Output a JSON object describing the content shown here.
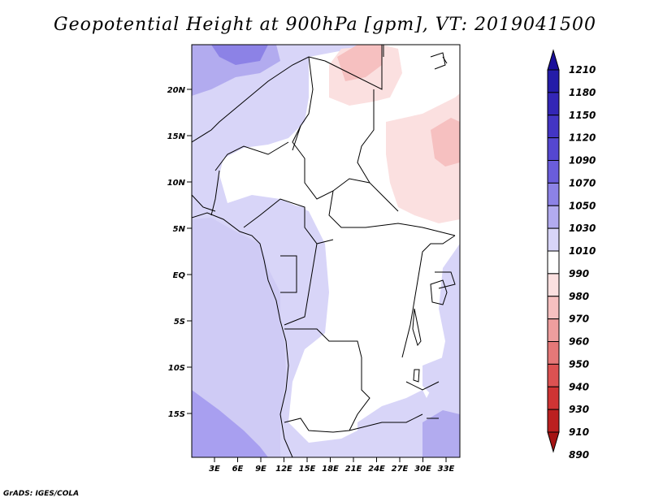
{
  "title": "Geopotential Height at 900hPa [gpm], VT: 2019041500",
  "credit": "GrADS: IGES/COLA",
  "lat_labels": [
    "20N",
    "15N",
    "10N",
    "5N",
    "EQ",
    "5S",
    "10S",
    "15S"
  ],
  "lon_labels": [
    "3E",
    "6E",
    "9E",
    "12E",
    "15E",
    "18E",
    "21E",
    "24E",
    "27E",
    "30E",
    "33E"
  ],
  "colorbar": {
    "levels": [
      "1210",
      "1180",
      "1150",
      "1120",
      "1090",
      "1070",
      "1050",
      "1030",
      "1010",
      "990",
      "980",
      "970",
      "960",
      "950",
      "940",
      "930",
      "910",
      "890"
    ],
    "colors": [
      "#1a0f9a",
      "#241ca8",
      "#3326b6",
      "#4335c4",
      "#5547d0",
      "#6a5ddb",
      "#8c82e6",
      "#b2abef",
      "#d8d5f8",
      "#ffffff",
      "#fbe0e0",
      "#f6c0c0",
      "#ee9e9e",
      "#e57878",
      "#dc5252",
      "#cf3434",
      "#bb2020",
      "#a51414"
    ]
  }
}
